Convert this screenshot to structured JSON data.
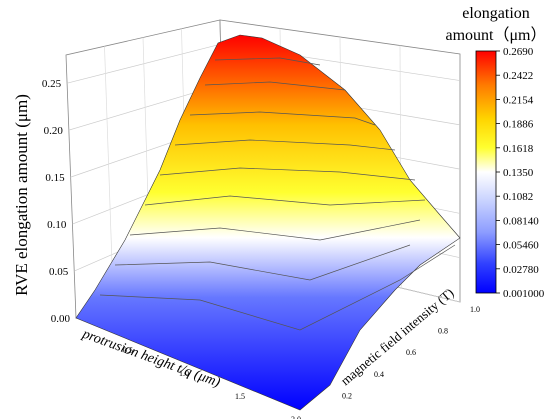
{
  "chart_data": {
    "type": "surface",
    "zlabel": "RVE elongation amount (μm)",
    "xlabel": "protrusion height t/q (μm)",
    "ylabel": "magnetic field intensity (T)",
    "z_ticks": [
      "0.00",
      "0.05",
      "0.10",
      "0.15",
      "0.20",
      "0.25"
    ],
    "x_ticks": [
      "0.5",
      "1.0",
      "1.5",
      "2.0"
    ],
    "y_ticks": [
      "0.2",
      "0.4",
      "0.6",
      "0.8",
      "1.0"
    ],
    "zlim": [
      0,
      0.28
    ],
    "xlim": [
      0,
      2.0
    ],
    "ylim": [
      0,
      1.0
    ],
    "grid": true,
    "surface_samples": {
      "x": [
        0,
        0.5,
        1.0,
        1.5,
        2.0
      ],
      "y": [
        0,
        0.25,
        0.5,
        0.75,
        1.0
      ],
      "z_description": "elongation at grid corners (approx.)",
      "corners": [
        {
          "x": 0,
          "y": 0,
          "z": 0.01
        },
        {
          "x": 0,
          "y": 1.0,
          "z": 0.269
        },
        {
          "x": 2.0,
          "y": 0,
          "z": 0.001
        },
        {
          "x": 2.0,
          "y": 1.0,
          "z": 0.105
        }
      ]
    },
    "colorbar": {
      "title_line1": "elongation",
      "title_line2": "amount（μm）",
      "ticks": [
        "0.2690",
        "0.2422",
        "0.2154",
        "0.1886",
        "0.1618",
        "0.1350",
        "0.1082",
        "0.08140",
        "0.05460",
        "0.02780",
        "0.001000"
      ],
      "colors": [
        "#ff0000",
        "#ff7a00",
        "#ffc800",
        "#ffff00",
        "#ffffa0",
        "#ffffff",
        "#c8d2ff",
        "#8c9cff",
        "#5a6aff",
        "#2a3aff",
        "#0000ff"
      ]
    }
  }
}
